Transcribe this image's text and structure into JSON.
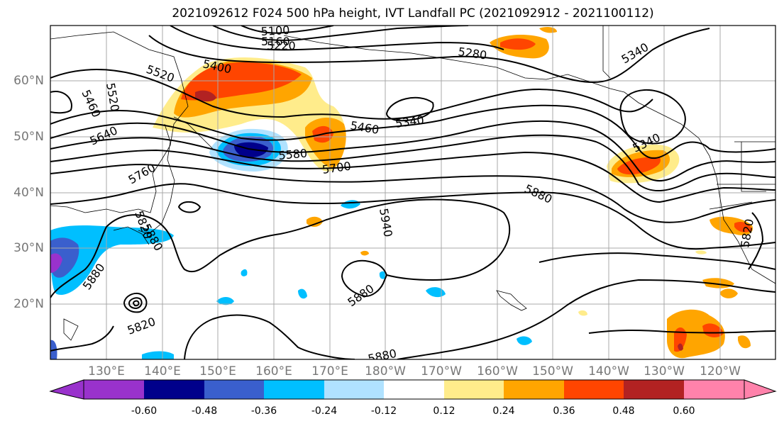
{
  "title": "2021092612 F024 500 hPa height, IVT Landfall PC (2021092912 - 2021100112)",
  "lat_labels": [
    "60°N",
    "50°N",
    "40°N",
    "30°N",
    "20°N"
  ],
  "lon_labels": [
    "130°E",
    "140°E",
    "150°E",
    "160°E",
    "170°E",
    "180°W",
    "170°W",
    "160°W",
    "150°W",
    "140°W",
    "130°W",
    "120°W"
  ],
  "contour_labels": [
    "5100",
    "5160",
    "5220",
    "5280",
    "5340",
    "5340",
    "5340",
    "5400",
    "5460",
    "5460",
    "5520",
    "5520",
    "5580",
    "5640",
    "5700",
    "5760",
    "5820",
    "5820",
    "5820",
    "5880",
    "5880",
    "5880",
    "5880",
    "5940",
    "5880"
  ],
  "colorbar": {
    "ticks": [
      "-0.60",
      "-0.48",
      "-0.36",
      "-0.24",
      "-0.12",
      "0.12",
      "0.24",
      "0.36",
      "0.48",
      "0.60"
    ],
    "colors": [
      "#9932CC",
      "#00008B",
      "#3A5FCD",
      "#00BFFF",
      "#B0E2FF",
      "#FFFFFF",
      "#FFEC8B",
      "#FFA500",
      "#FF4500",
      "#B22222",
      "#FF82AB"
    ]
  }
}
